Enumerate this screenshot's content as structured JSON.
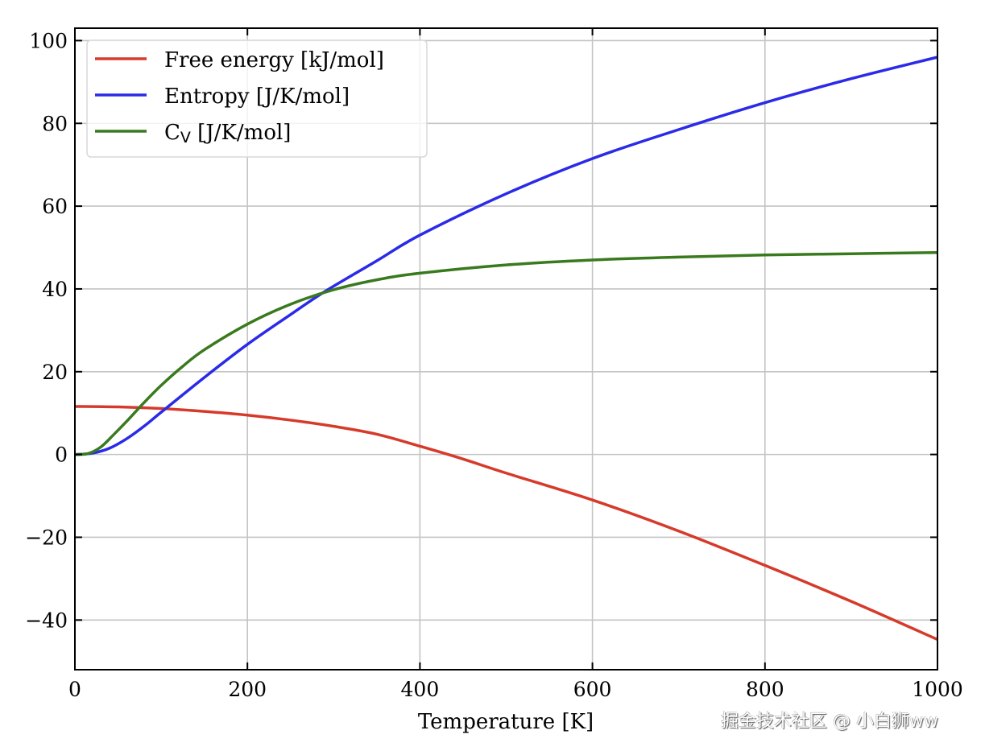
{
  "chart_data": {
    "type": "line",
    "title": "",
    "xlabel": "Temperature [K]",
    "ylabel": "",
    "xlim": [
      0,
      1000
    ],
    "ylim": [
      -52,
      103
    ],
    "xticks": [
      0,
      200,
      400,
      600,
      800,
      1000
    ],
    "yticks": [
      -40,
      -20,
      0,
      20,
      40,
      60,
      80,
      100
    ],
    "xtick_labels": [
      "0",
      "200",
      "400",
      "600",
      "800",
      "1000"
    ],
    "ytick_labels": [
      "−40",
      "−20",
      "0",
      "20",
      "40",
      "60",
      "80",
      "100"
    ],
    "grid": true,
    "legend_placement": "top-left",
    "series": [
      {
        "name": "Free energy [kJ/mol]",
        "legend_main": "Free energy [kJ/mol]",
        "color": "#d63a2a",
        "x": [
          0,
          50,
          100,
          150,
          200,
          250,
          300,
          350,
          400,
          450,
          500,
          600,
          700,
          800,
          900,
          1000
        ],
        "y": [
          11.6,
          11.5,
          11.1,
          10.4,
          9.5,
          8.3,
          6.8,
          4.9,
          2.0,
          -1.1,
          -4.5,
          -11.0,
          -18.5,
          -26.8,
          -35.5,
          -44.7
        ]
      },
      {
        "name": "Entropy [J/K/mol]",
        "legend_main": "Entropy [J/K/mol]",
        "color": "#2a2ae8",
        "x": [
          0,
          20,
          40,
          60,
          80,
          100,
          150,
          200,
          250,
          290,
          350,
          400,
          500,
          600,
          700,
          800,
          900,
          1000
        ],
        "y": [
          0,
          0.3,
          1.5,
          3.8,
          6.8,
          10.2,
          18.6,
          26.6,
          33.8,
          39.4,
          46.8,
          53.0,
          63.0,
          71.5,
          78.5,
          85.0,
          90.8,
          96.0
        ]
      },
      {
        "name": "Cv [J/K/mol]",
        "legend_main": "C",
        "legend_sub": "V",
        "legend_rest": " [J/K/mol]",
        "color": "#3a7a1e",
        "x": [
          0,
          15,
          30,
          45,
          60,
          80,
          100,
          125,
          150,
          200,
          250,
          300,
          350,
          400,
          500,
          600,
          700,
          800,
          900,
          1000
        ],
        "y": [
          0,
          0.2,
          1.8,
          4.8,
          8.0,
          12.5,
          16.7,
          21.3,
          25.3,
          31.5,
          36.3,
          39.8,
          42.2,
          43.8,
          45.8,
          47.0,
          47.7,
          48.2,
          48.5,
          48.8
        ]
      }
    ]
  },
  "watermark": "掘金技术社区 @ 小白狮ww"
}
